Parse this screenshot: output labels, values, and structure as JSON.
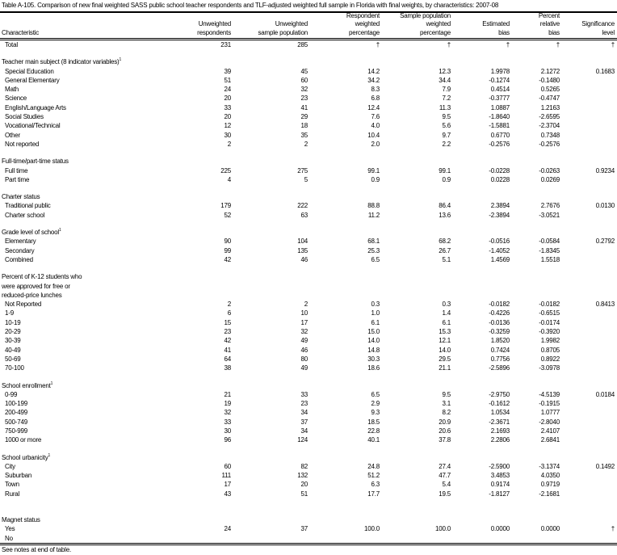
{
  "title": "Table A-105. Comparison of new final weighted SASS public school teacher respondents and TLF-adjusted weighted full sample in Florida with final weights, by characteristics: 2007-08",
  "columns": [
    "Characteristic",
    "Unweighted respondents",
    "Unweighted sample population",
    "Respondent weighted percentage",
    "Sample population weighted percentage",
    "Estimated bias",
    "Percent relative bias",
    "Significance level"
  ],
  "column_lines": [
    [
      "Characteristic"
    ],
    [
      "Unweighted",
      "respondents"
    ],
    [
      "Unweighted",
      "sample population"
    ],
    [
      "Respondent",
      "weighted",
      "percentage"
    ],
    [
      "Sample population",
      "weighted",
      "percentage"
    ],
    [
      "Estimated",
      "bias"
    ],
    [
      "Percent",
      "relative",
      "bias"
    ],
    [
      "Significance",
      "level"
    ]
  ],
  "total": [
    "Total",
    "231",
    "285",
    "†",
    "†",
    "†",
    "†",
    "†"
  ],
  "sections": [
    {
      "heading": [
        "Teacher main subject (8 indicator variables)"
      ],
      "note": "1",
      "rows": [
        [
          "Special Education",
          "39",
          "45",
          "14.2",
          "12.3",
          "1.9978",
          "2.1272",
          "0.1683"
        ],
        [
          "General Elementary",
          "51",
          "60",
          "34.2",
          "34.4",
          "-0.1274",
          "-0.1480",
          ""
        ],
        [
          "Math",
          "24",
          "32",
          "8.3",
          "7.9",
          "0.4514",
          "0.5265",
          ""
        ],
        [
          "Science",
          "20",
          "23",
          "6.8",
          "7.2",
          "-0.3777",
          "-0.4747",
          ""
        ],
        [
          "English/Language Arts",
          "33",
          "41",
          "12.4",
          "11.3",
          "1.0887",
          "1.2163",
          ""
        ],
        [
          "Social Studies",
          "20",
          "29",
          "7.6",
          "9.5",
          "-1.8640",
          "-2.6595",
          ""
        ],
        [
          "Vocational/Technical",
          "12",
          "18",
          "4.0",
          "5.6",
          "-1.5881",
          "-2.3704",
          ""
        ],
        [
          "Other",
          "30",
          "35",
          "10.4",
          "9.7",
          "0.6770",
          "0.7348",
          ""
        ],
        [
          "Not reported",
          "2",
          "2",
          "2.0",
          "2.2",
          "-0.2576",
          "-0.2576",
          ""
        ]
      ]
    },
    {
      "heading": [
        "Full-time/part-time status"
      ],
      "note": "",
      "rows": [
        [
          "Full time",
          "225",
          "275",
          "99.1",
          "99.1",
          "-0.0228",
          "-0.0263",
          "0.9234"
        ],
        [
          "Part time",
          "4",
          "5",
          "0.9",
          "0.9",
          "0.0228",
          "0.0269",
          ""
        ]
      ]
    },
    {
      "heading": [
        "Charter status"
      ],
      "note": "",
      "rows": [
        [
          "Traditional public",
          "179",
          "222",
          "88.8",
          "86.4",
          "2.3894",
          "2.7676",
          "0.0130"
        ],
        [
          "Charter school",
          "52",
          "63",
          "11.2",
          "13.6",
          "-2.3894",
          "-3.0521",
          ""
        ]
      ]
    },
    {
      "heading": [
        "Grade level of school"
      ],
      "note": "1",
      "rows": [
        [
          "Elementary",
          "90",
          "104",
          "68.1",
          "68.2",
          "-0.0516",
          "-0.0584",
          "0.2792"
        ],
        [
          "Secondary",
          "99",
          "135",
          "25.3",
          "26.7",
          "-1.4052",
          "-1.8345",
          ""
        ],
        [
          "Combined",
          "42",
          "46",
          "6.5",
          "5.1",
          "1.4569",
          "1.5518",
          ""
        ]
      ]
    },
    {
      "heading": [
        "Percent of K-12 students who",
        " were approved for free or",
        " reduced-price lunches"
      ],
      "note": "",
      "rows": [
        [
          "Not Reported",
          "2",
          "2",
          "0.3",
          "0.3",
          "-0.0182",
          "-0.0182",
          "0.8413"
        ],
        [
          "1-9",
          "6",
          "10",
          "1.0",
          "1.4",
          "-0.4226",
          "-0.6515",
          ""
        ],
        [
          "10-19",
          "15",
          "17",
          "6.1",
          "6.1",
          "-0.0136",
          "-0.0174",
          ""
        ],
        [
          "20-29",
          "23",
          "32",
          "15.0",
          "15.3",
          "-0.3259",
          "-0.3920",
          ""
        ],
        [
          "30-39",
          "42",
          "49",
          "14.0",
          "12.1",
          "1.8520",
          "1.9982",
          ""
        ],
        [
          "40-49",
          "41",
          "46",
          "14.8",
          "14.0",
          "0.7424",
          "0.8705",
          ""
        ],
        [
          "50-69",
          "64",
          "80",
          "30.3",
          "29.5",
          "0.7756",
          "0.8922",
          ""
        ],
        [
          "70-100",
          "38",
          "49",
          "18.6",
          "21.1",
          "-2.5896",
          "-3.0978",
          ""
        ]
      ]
    },
    {
      "heading": [
        "School enrollment"
      ],
      "note": "1",
      "rows": [
        [
          "0-99",
          "21",
          "33",
          "6.5",
          "9.5",
          "-2.9750",
          "-4.5139",
          "0.0184"
        ],
        [
          "100-199",
          "19",
          "23",
          "2.9",
          "3.1",
          "-0.1612",
          "-0.1915",
          ""
        ],
        [
          "200-499",
          "32",
          "34",
          "9.3",
          "8.2",
          "1.0534",
          "1.0777",
          ""
        ],
        [
          "500-749",
          "33",
          "37",
          "18.5",
          "20.9",
          "-2.3671",
          "-2.8040",
          ""
        ],
        [
          "750-999",
          "30",
          "34",
          "22.8",
          "20.6",
          "2.1693",
          "2.4107",
          ""
        ],
        [
          "1000 or more",
          "96",
          "124",
          "40.1",
          "37.8",
          "2.2806",
          "2.6841",
          ""
        ]
      ]
    },
    {
      "heading": [
        "School urbanicity"
      ],
      "note": "1",
      "rows": [
        [
          "City",
          "60",
          "82",
          "24.8",
          "27.4",
          "-2.5900",
          "-3.1374",
          "0.1492"
        ],
        [
          "Suburban",
          "111",
          "132",
          "51.2",
          "47.7",
          "3.4853",
          "4.0350",
          ""
        ],
        [
          "Town",
          "17",
          "20",
          "6.3",
          "5.4",
          "0.9174",
          "0.9719",
          ""
        ],
        [
          "Rural",
          "43",
          "51",
          "17.7",
          "19.5",
          "-1.8127",
          "-2.1681",
          ""
        ]
      ]
    },
    {
      "heading": [
        "Magnet status"
      ],
      "note": "",
      "rows": [
        [
          "Yes",
          "24",
          "37",
          "100.0",
          "100.0",
          "0.0000",
          "0.0000",
          "†"
        ],
        [
          "No",
          "",
          "",
          "",
          "",
          "",
          "",
          ""
        ]
      ]
    }
  ],
  "footnote": "See notes at end of table."
}
